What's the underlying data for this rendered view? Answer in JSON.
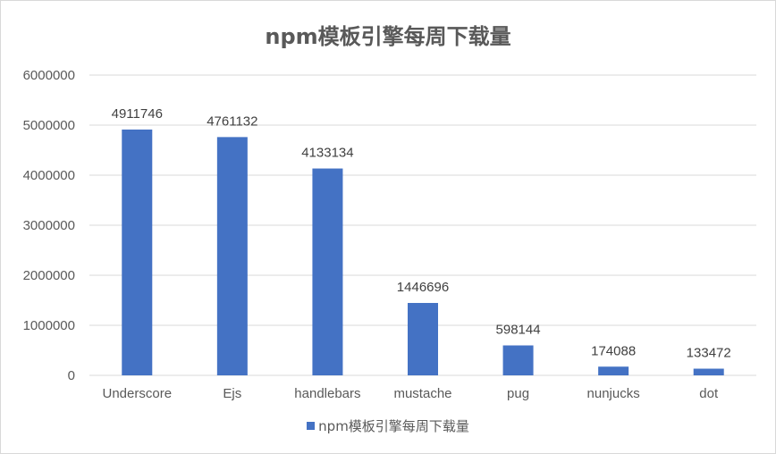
{
  "colors": {
    "bar": "#4472C4",
    "grid": "#d9d9d9"
  },
  "chart_data": {
    "type": "bar",
    "title": "npm模板引擎每周下载量",
    "categories": [
      "Underscore",
      "Ejs",
      "handlebars",
      "mustache",
      "pug",
      "nunjucks",
      "dot"
    ],
    "series": [
      {
        "name": "npm模板引擎每周下载量",
        "values": [
          4911746,
          4761132,
          4133134,
          1446696,
          598144,
          174088,
          133472
        ]
      }
    ],
    "ylim": [
      0,
      6000000
    ],
    "yticks": [
      0,
      1000000,
      2000000,
      3000000,
      4000000,
      5000000,
      6000000
    ],
    "grid": true,
    "legend_position": "bottom",
    "data_labels": true
  }
}
